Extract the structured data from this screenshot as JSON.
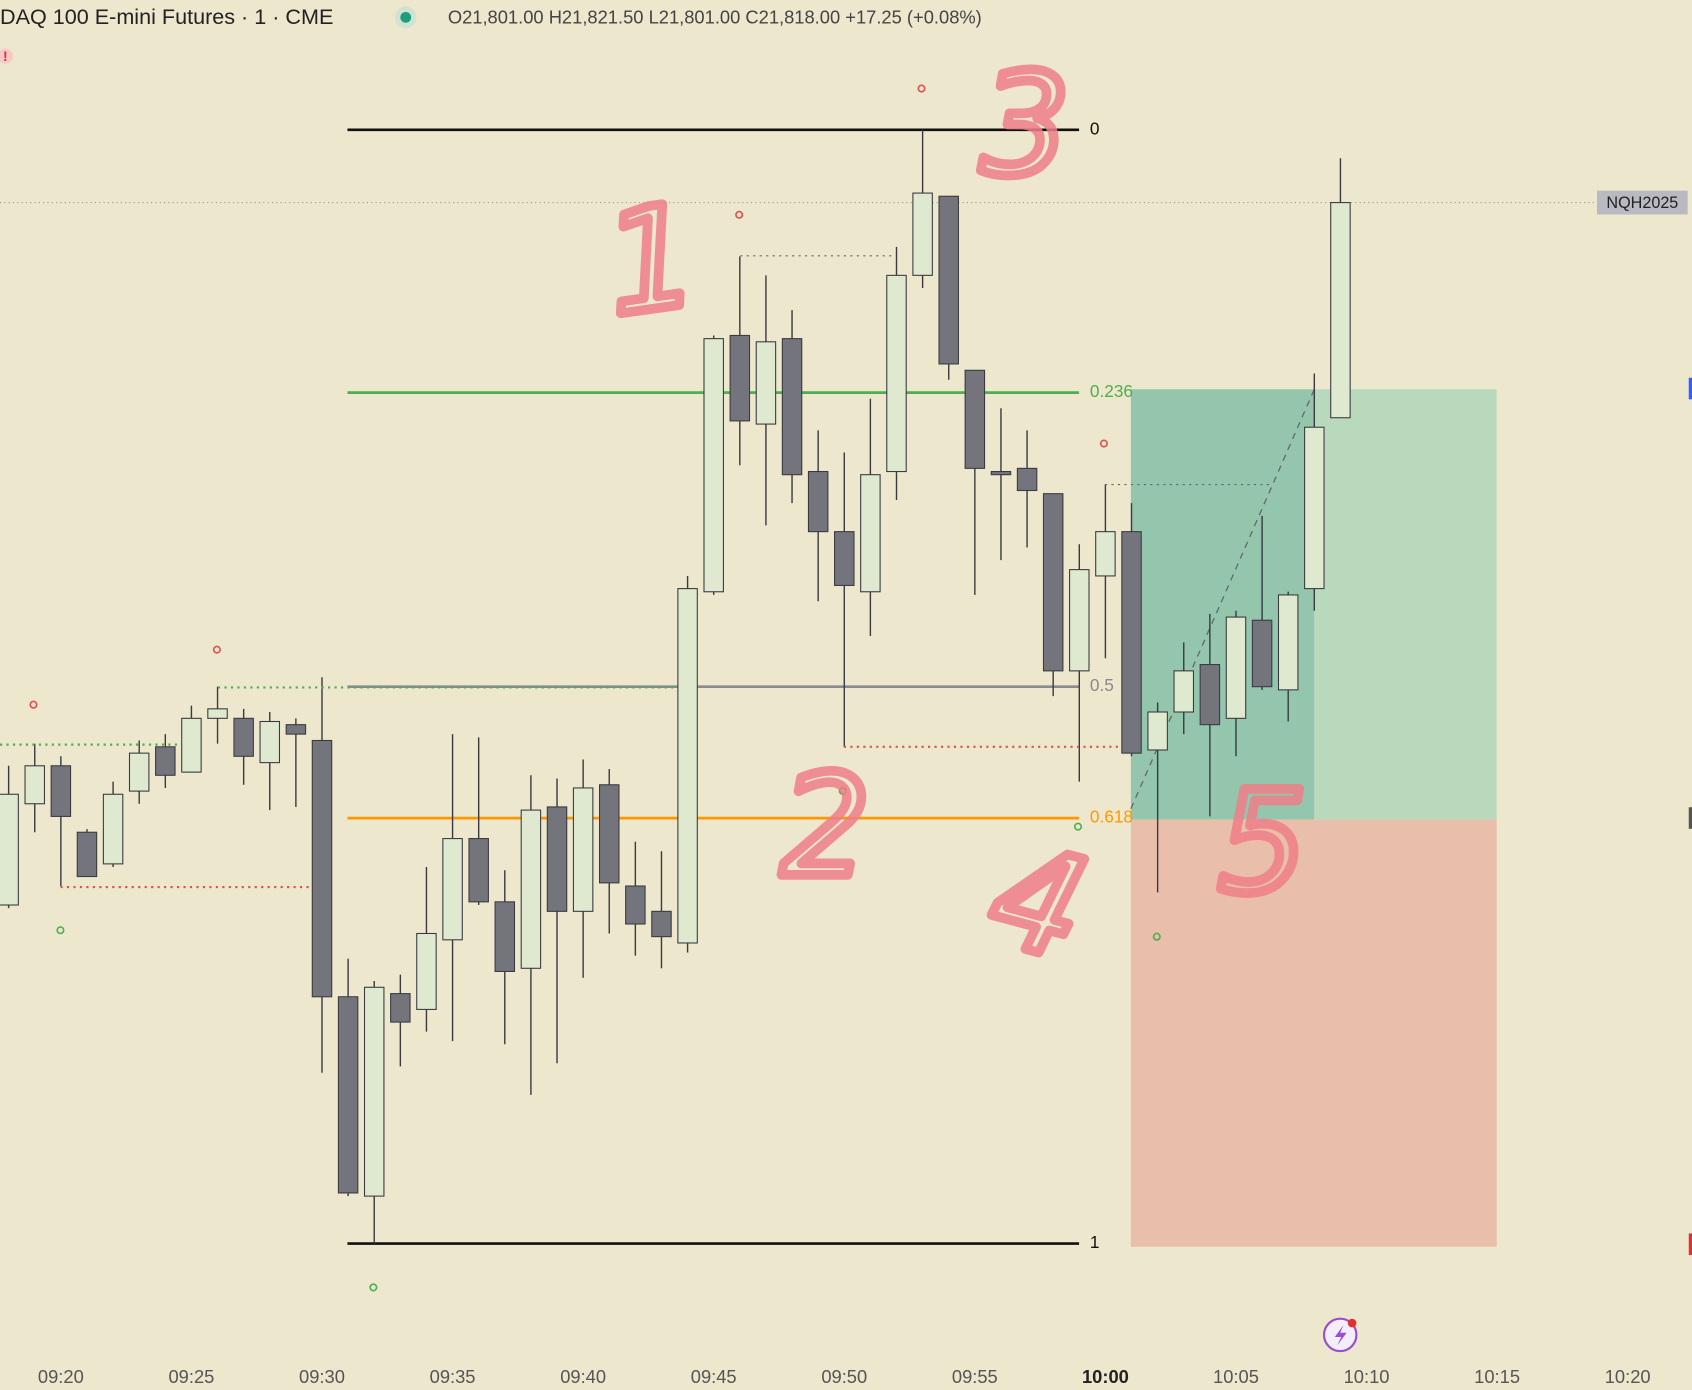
{
  "header": {
    "title": "DAQ 100 E-mini Futures · 1 · CME",
    "ohlc": "O21,801.00 H21,821.50 L21,801.00 C21,818.00 +17.25 (+0.08%)"
  },
  "chart_data": {
    "type": "candlestick",
    "symbol": "NQH2025",
    "categories": [
      null,
      null,
      "09:20",
      null,
      null,
      null,
      null,
      "09:25",
      null,
      null,
      null,
      null,
      "09:30",
      null,
      null,
      null,
      null,
      "09:35",
      null,
      null,
      null,
      null,
      "09:40",
      null,
      null,
      null,
      null,
      "09:45",
      null,
      null,
      null,
      null,
      "09:50",
      null,
      null,
      null,
      null,
      "09:55",
      null,
      null,
      null,
      null,
      "10:00",
      null,
      null,
      null,
      null,
      "10:05",
      null,
      null,
      null,
      null,
      "10:10",
      null,
      null,
      null,
      null,
      "10:15",
      null,
      null,
      null,
      null,
      "10:20"
    ],
    "open": [
      21762.5,
      21770.5,
      21773.5,
      21768.25,
      21765.75,
      21771.5,
      21775,
      21773,
      21777.25,
      21777.25,
      21773.75,
      21776.75,
      21775.5,
      21755.25,
      21739.5,
      21755.5,
      21754.25,
      21759.75,
      21767.75,
      21762.75,
      21757.5,
      21770.25,
      21762,
      21772,
      21764,
      21762,
      21759.5,
      21787.25,
      21807.5,
      21800.5,
      21807.25,
      21796.75,
      21792,
      21787.25,
      21796.75,
      21812.25,
      21818.5,
      21804.75,
      21796.75,
      21797,
      21795,
      21781,
      21788.5,
      21792,
      21774.75,
      21777.75,
      21781.5,
      21777.25,
      21785,
      21779.5,
      21787.5,
      21801,
      null,
      null,
      null,
      null,
      null,
      null,
      null,
      null,
      null,
      null,
      null
    ],
    "high": [
      21773.5,
      21775.25,
      21774.25,
      21768.5,
      21772.25,
      21775.5,
      21776,
      21778.25,
      21779.75,
      21778,
      21777.75,
      21777.25,
      21780.5,
      21758.25,
      21756.5,
      21757,
      21765.5,
      21776,
      21775.75,
      21765.25,
      21772.75,
      21772.5,
      21774,
      21773.25,
      21767.5,
      21766.75,
      21788.5,
      21807.5,
      21813.75,
      21812.25,
      21809.5,
      21800,
      21798.25,
      21802.5,
      21814.5,
      21823.75,
      21818.5,
      21804.75,
      21801.75,
      21800,
      21795,
      21791,
      21795.75,
      21794.25,
      21778.5,
      21783.25,
      21785.5,
      21785.75,
      21793.25,
      21787.25,
      21804.5,
      21821.5,
      null,
      null,
      null,
      null,
      null,
      null,
      null,
      null,
      null,
      null,
      null
    ],
    "low": [
      21762.25,
      21768.25,
      21764,
      21764.75,
      21765.5,
      21770.5,
      21771.75,
      21773,
      21775.25,
      21772,
      21770,
      21770.25,
      21749.25,
      21739.5,
      21735.75,
      21749.75,
      21752.5,
      21751.75,
      21762.5,
      21751.5,
      21747.5,
      21750,
      21756.75,
      21760.25,
      21758.5,
      21757.5,
      21758.75,
      21787,
      21797.25,
      21792.5,
      21794.25,
      21786.5,
      21775,
      21783.75,
      21794.5,
      21811.25,
      21804,
      21787,
      21789.75,
      21790.75,
      21779,
      21772.25,
      21782,
      21774.25,
      21763.5,
      21776,
      21769.5,
      21774.25,
      21779.5,
      21777,
      21785.75,
      21801,
      null,
      null,
      null,
      null,
      null,
      null,
      null,
      null,
      null,
      null,
      null
    ],
    "close": [
      21771.25,
      21773.5,
      21769.5,
      21764.75,
      21771.25,
      21774.5,
      21772.75,
      21777.25,
      21778,
      21774.25,
      21777,
      21776,
      21755.25,
      21739.75,
      21756,
      21753.25,
      21760.25,
      21767.75,
      21762.75,
      21757.25,
      21770,
      21762,
      21771.75,
      21764.25,
      21761,
      21760,
      21787.5,
      21807.25,
      21800.75,
      21807,
      21796.5,
      21792,
      21787.75,
      21796.5,
      21812.25,
      21818.75,
      21805.25,
      21797,
      21796.5,
      21795.25,
      21781,
      21789,
      21792,
      21774.5,
      21777.75,
      21781,
      21776.75,
      21785.25,
      21779.75,
      21787,
      21800.25,
      21818,
      null,
      null,
      null,
      null,
      null,
      null,
      null,
      null,
      null,
      null,
      null
    ],
    "up_color": "#dfe9cf",
    "down_color": "#74747c",
    "ylim": [
      21727,
      21834
    ],
    "fib": {
      "high": 21823.75,
      "low": 21735.75,
      "levels": [
        0,
        0.236,
        0.5,
        0.618,
        1
      ],
      "colors": [
        "#111111",
        "#4caf50",
        "#8a8a90",
        "#ff9800",
        "#111111"
      ]
    },
    "position": {
      "target": 21803.25,
      "entry": 21769.25,
      "stop": 21735.5
    },
    "annotations": [
      "1",
      "2",
      "3",
      "4",
      "5"
    ]
  }
}
